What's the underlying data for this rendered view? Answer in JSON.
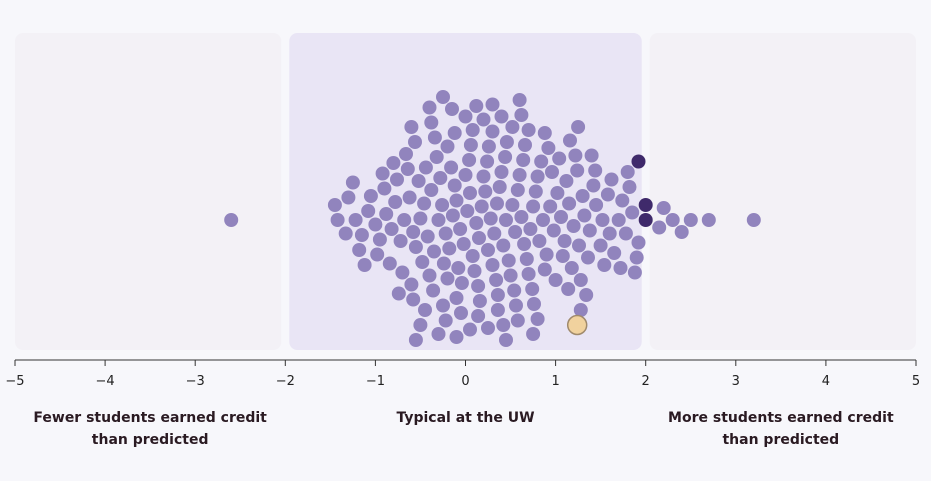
{
  "chart_data": {
    "type": "scatter",
    "subtype": "beeswarm",
    "xlim": [
      -5,
      5
    ],
    "x_ticks": [
      {
        "value": -5,
        "label": "−5"
      },
      {
        "value": -4,
        "label": "−4"
      },
      {
        "value": -3,
        "label": "−3"
      },
      {
        "value": -2,
        "label": "−2"
      },
      {
        "value": -1,
        "label": "−1"
      },
      {
        "value": 0,
        "label": "0"
      },
      {
        "value": 1,
        "label": "1"
      },
      {
        "value": 2,
        "label": "2"
      },
      {
        "value": 3,
        "label": "3"
      },
      {
        "value": 4,
        "label": "4"
      },
      {
        "value": 5,
        "label": "5"
      }
    ],
    "zones": [
      {
        "id": "below",
        "range": [
          -5,
          -2
        ],
        "color": "#f3f1f6",
        "caption": [
          "Fewer students earned credit",
          "than predicted"
        ]
      },
      {
        "id": "typical",
        "range": [
          -2,
          2
        ],
        "color": "#e9e5f5",
        "caption": [
          "Typical at the UW"
        ]
      },
      {
        "id": "above",
        "range": [
          2,
          5
        ],
        "color": "#f3f1f6",
        "caption": [
          "More students earned credit",
          "than predicted"
        ]
      }
    ],
    "colors": {
      "point": "#9184bd",
      "point_edge": "#3f2a6b",
      "highlight": "#f1d29e",
      "highlight_stroke": "#a08a6c",
      "axis": "#333333"
    },
    "series": [
      {
        "role": "courses",
        "values": [
          -2.6,
          -1.42,
          -1.33,
          -1.22,
          -1.15,
          -1.08,
          -1.0,
          -0.95,
          -0.88,
          -0.82,
          -0.78,
          -0.72,
          -0.68,
          -0.62,
          -0.58,
          -0.55,
          -0.5,
          -0.46,
          -0.42,
          -0.38,
          -0.35,
          -0.3,
          -0.26,
          -0.22,
          -0.18,
          -0.14,
          -0.1,
          -0.06,
          -0.02,
          0.02,
          0.05,
          0.08,
          0.12,
          0.15,
          0.18,
          0.22,
          0.25,
          0.28,
          0.32,
          0.35,
          0.38,
          0.42,
          0.45,
          0.48,
          0.52,
          0.55,
          0.58,
          0.62,
          0.65,
          0.68,
          0.72,
          0.75,
          0.78,
          0.82,
          0.86,
          0.9,
          0.94,
          0.98,
          1.02,
          1.06,
          1.1,
          1.15,
          1.2,
          1.26,
          1.32,
          1.38,
          1.45,
          1.52,
          1.6,
          1.7,
          1.78,
          1.85,
          1.92,
          2.3,
          2.5,
          2.7,
          3.2,
          -1.45,
          -1.3,
          -1.18,
          -1.05,
          -0.98,
          -0.9,
          -0.84,
          -0.76,
          -0.7,
          -0.64,
          -0.6,
          -0.52,
          -0.48,
          -0.44,
          -0.4,
          -0.32,
          -0.28,
          -0.24,
          -0.2,
          -0.16,
          -0.12,
          -0.08,
          -0.04,
          0.0,
          0.04,
          0.1,
          0.14,
          0.2,
          0.24,
          0.3,
          0.34,
          0.4,
          0.44,
          0.5,
          0.54,
          0.6,
          0.64,
          0.7,
          0.74,
          0.8,
          0.84,
          0.88,
          0.96,
          1.0,
          1.08,
          1.12,
          1.18,
          1.24,
          1.3,
          1.36,
          1.42,
          1.5,
          1.58,
          1.65,
          1.74,
          1.82,
          1.9,
          2.15,
          2.4,
          -1.25,
          -1.12,
          -0.92,
          -0.8,
          -0.66,
          -0.56,
          -0.36,
          -0.2,
          -0.1,
          0.06,
          0.16,
          0.26,
          0.36,
          0.46,
          0.56,
          0.66,
          0.76,
          0.92,
          1.04,
          1.14,
          1.22,
          1.28,
          1.34,
          1.44,
          1.54,
          1.62,
          1.72,
          1.8,
          1.88,
          2.2,
          -0.74,
          -0.58,
          -0.34,
          -0.12,
          0.08,
          0.3,
          0.52,
          0.7,
          0.88,
          1.16,
          1.4,
          -0.6,
          -0.45,
          -0.25,
          -0.05,
          0.14,
          0.36,
          0.58,
          0.8,
          1.28,
          -0.5,
          -0.38,
          -0.22,
          0.0,
          0.2,
          0.42,
          0.62,
          -0.4,
          -0.3,
          -0.15,
          0.05,
          0.25,
          0.4,
          -0.25,
          -0.1,
          0.12,
          0.3,
          0.45,
          -0.55,
          0.6,
          0.75,
          1.25
        ]
      },
      {
        "role": "edge_courses",
        "values": [
          2.0,
          2.0,
          1.92
        ]
      },
      {
        "role": "selected_course",
        "values": [
          1.24
        ]
      }
    ]
  }
}
